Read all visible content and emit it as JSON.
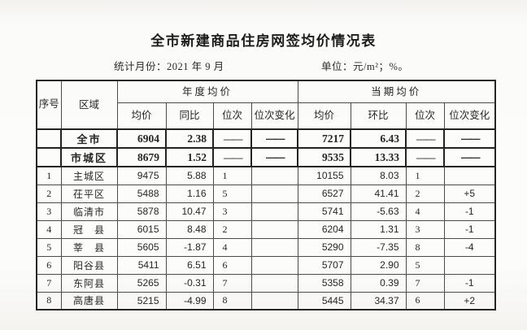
{
  "title": "全市新建商品住房网签均价情况表",
  "meta": {
    "period_label": "统计月份：2021 年 9 月",
    "unit_label": "单位：元/m²；%。"
  },
  "table": {
    "headers": {
      "seq": "序号",
      "region": "区域",
      "annual_group": "年度均价",
      "current_group": "当期均价",
      "avg": "均价",
      "yoy": "同比",
      "mom": "环比",
      "rank": "位次",
      "rank_change": "位次变化"
    },
    "dash": "——",
    "summary_rows": [
      {
        "seq": "",
        "region": "全市",
        "a_avg": "6904",
        "a_yoy": "2.38",
        "a_rank": "——",
        "a_rc": "——",
        "c_avg": "7217",
        "c_mom": "6.43",
        "c_rank": "——",
        "c_rc": "——"
      },
      {
        "seq": "",
        "region": "市城区",
        "a_avg": "8679",
        "a_yoy": "1.52",
        "a_rank": "——",
        "a_rc": "——",
        "c_avg": "9535",
        "c_mom": "13.33",
        "c_rank": "——",
        "c_rc": "——"
      }
    ],
    "rows": [
      {
        "seq": "1",
        "region": "主城区",
        "a_avg": "9475",
        "a_yoy": "5.88",
        "a_rank": "1",
        "a_rc": "",
        "c_avg": "10155",
        "c_mom": "8.03",
        "c_rank": "1",
        "c_rc": ""
      },
      {
        "seq": "2",
        "region": "茌平区",
        "a_avg": "5488",
        "a_yoy": "1.16",
        "a_rank": "5",
        "a_rc": "",
        "c_avg": "6527",
        "c_mom": "41.41",
        "c_rank": "2",
        "c_rc": "+5"
      },
      {
        "seq": "3",
        "region": "临清市",
        "a_avg": "5878",
        "a_yoy": "10.47",
        "a_rank": "3",
        "a_rc": "",
        "c_avg": "5741",
        "c_mom": "-5.63",
        "c_rank": "4",
        "c_rc": "-1"
      },
      {
        "seq": "4",
        "region": "冠　县",
        "a_avg": "6015",
        "a_yoy": "8.48",
        "a_rank": "2",
        "a_rc": "",
        "c_avg": "6204",
        "c_mom": "1.31",
        "c_rank": "3",
        "c_rc": "-1"
      },
      {
        "seq": "5",
        "region": "莘　县",
        "a_avg": "5605",
        "a_yoy": "-1.87",
        "a_rank": "4",
        "a_rc": "",
        "c_avg": "5290",
        "c_mom": "-7.35",
        "c_rank": "8",
        "c_rc": "-4"
      },
      {
        "seq": "6",
        "region": "阳谷县",
        "a_avg": "5411",
        "a_yoy": "6.51",
        "a_rank": "6",
        "a_rc": "",
        "c_avg": "5707",
        "c_mom": "2.90",
        "c_rank": "5",
        "c_rc": ""
      },
      {
        "seq": "7",
        "region": "东阿县",
        "a_avg": "5265",
        "a_yoy": "-0.31",
        "a_rank": "7",
        "a_rc": "",
        "c_avg": "5358",
        "c_mom": "0.39",
        "c_rank": "7",
        "c_rc": "-1"
      },
      {
        "seq": "8",
        "region": "高唐县",
        "a_avg": "5215",
        "a_yoy": "-4.99",
        "a_rank": "8",
        "a_rc": "",
        "c_avg": "5445",
        "c_mom": "34.37",
        "c_rank": "6",
        "c_rc": "+2"
      }
    ]
  },
  "colors": {
    "negative_red": "#cf3a2e",
    "ink": "#262626",
    "grid_line": "#4b4b4b",
    "bold_line": "#232323",
    "paper": "#fbfbfa"
  }
}
